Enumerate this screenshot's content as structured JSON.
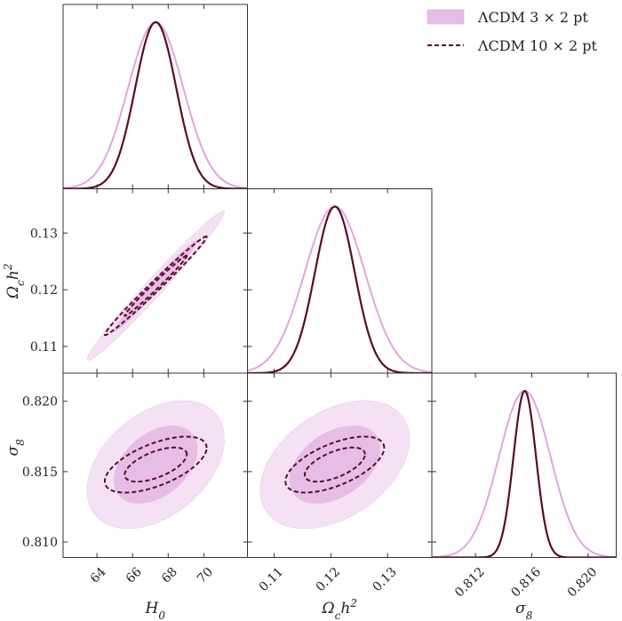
{
  "chart_data": {
    "type": "triangle-corner",
    "parameters": [
      {
        "name": "H0",
        "label": "H",
        "label_sub": "0",
        "range": [
          62.1,
          72.45
        ],
        "ticks": [
          64,
          66,
          68,
          70
        ],
        "tick_labels": [
          "64",
          "66",
          "68",
          "70"
        ]
      },
      {
        "name": "omch2",
        "label": "Ω",
        "label_sub": "c",
        "label_tail": "h",
        "label_sup": "2",
        "range": [
          0.1053,
          0.1378
        ],
        "ticks": [
          0.11,
          0.12,
          0.13
        ],
        "tick_labels": [
          "0.11",
          "0.12",
          "0.13"
        ]
      },
      {
        "name": "sigma8",
        "label": "σ",
        "label_sub": "8",
        "range": [
          0.8089,
          0.822
        ],
        "ticks": [
          0.812,
          0.816,
          0.82
        ],
        "tick_labels": [
          "0.812",
          "0.816",
          "0.820"
        ],
        "y_ticks": [
          0.81,
          0.815,
          0.82
        ],
        "y_tick_labels": [
          "0.810",
          "0.815",
          "0.820"
        ]
      }
    ],
    "series": [
      {
        "name": "ΛCDM 3 × 2 pt",
        "style": "filled",
        "line_color": "#e3a3e3",
        "fill_outer": "#f4e1f4",
        "fill_inner": "#e6bde6",
        "mean": [
          67.3,
          0.1207,
          0.8155
        ],
        "sigma": [
          1.55,
          0.0053,
          0.00183
        ],
        "corr": {
          "H0-omch2": 0.985,
          "H0-sigma8": 0.4,
          "omch2-sigma8": 0.4
        }
      },
      {
        "name": "ΛCDM 10 × 2 pt",
        "style": "dashed",
        "line_color": "#5c0a28",
        "mean": [
          67.3,
          0.1207,
          0.8155
        ],
        "sigma": [
          1.15,
          0.0035,
          0.0008
        ],
        "corr": {
          "H0-omch2": 0.99,
          "H0-sigma8": 0.6,
          "omch2-sigma8": 0.6
        }
      }
    ],
    "contour_levels": [
      "68%",
      "95%"
    ],
    "legend_position": "top-right",
    "legend": [
      {
        "label": "ΛCDM 3 × 2 pt",
        "marker": "filled-patch"
      },
      {
        "label": "ΛCDM 10 × 2 pt",
        "marker": "dashed-line"
      }
    ]
  }
}
